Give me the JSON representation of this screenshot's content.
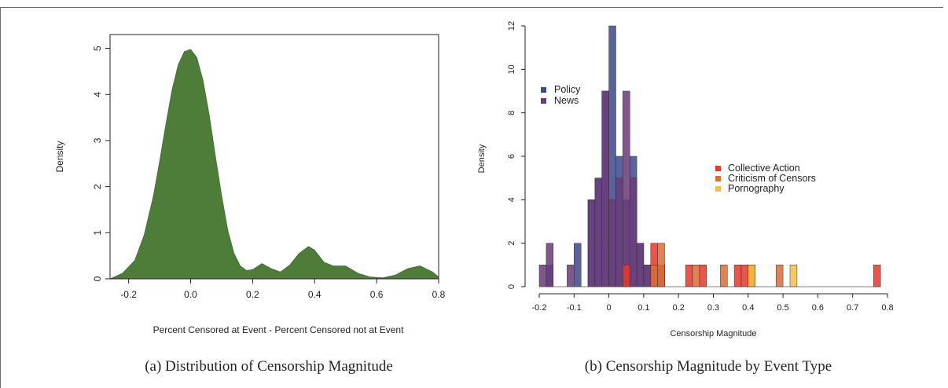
{
  "chart_data": [
    {
      "type": "area",
      "caption": "(a) Distribution of Censorship Magnitude",
      "xlabel": "Percent Censored at Event - Percent Censored not at Event",
      "ylabel": "Density",
      "xlim": [
        -0.26,
        0.8
      ],
      "ylim": [
        0,
        5.3
      ],
      "x_ticks": [
        "-0.2",
        "0.0",
        "0.2",
        "0.4",
        "0.6",
        "0.8"
      ],
      "y_ticks": [
        "0",
        "1",
        "2",
        "3",
        "4",
        "5"
      ],
      "fill_color": "#4e7d3a",
      "series": [
        {
          "x": [
            -0.26,
            -0.22,
            -0.18,
            -0.15,
            -0.12,
            -0.1,
            -0.08,
            -0.06,
            -0.04,
            -0.02,
            0.0,
            0.02,
            0.04,
            0.06,
            0.08,
            0.1,
            0.12,
            0.14,
            0.16,
            0.18,
            0.2,
            0.23,
            0.26,
            0.29,
            0.32,
            0.35,
            0.38,
            0.4,
            0.43,
            0.46,
            0.5,
            0.54,
            0.58,
            0.62,
            0.66,
            0.7,
            0.74,
            0.78,
            0.8
          ],
          "y": [
            0.0,
            0.12,
            0.4,
            0.95,
            1.8,
            2.55,
            3.35,
            4.1,
            4.65,
            4.93,
            4.98,
            4.8,
            4.3,
            3.55,
            2.65,
            1.8,
            1.05,
            0.55,
            0.28,
            0.18,
            0.2,
            0.33,
            0.22,
            0.15,
            0.3,
            0.55,
            0.7,
            0.62,
            0.36,
            0.28,
            0.28,
            0.12,
            0.04,
            0.02,
            0.08,
            0.22,
            0.28,
            0.15,
            0.04
          ]
        }
      ]
    },
    {
      "type": "bar",
      "caption": "(b) Censorship Magnitude by Event Type",
      "xlabel": "Censorship Magnitude",
      "ylabel": "Density",
      "xlim": [
        -0.2,
        0.8
      ],
      "ylim": [
        0,
        12
      ],
      "x_ticks": [
        "-0.2",
        "-0.1",
        "0",
        "0.1",
        "0.2",
        "0.3",
        "0.4",
        "0.5",
        "0.6",
        "0.7",
        "0.8"
      ],
      "y_ticks": [
        "0",
        "2",
        "4",
        "6",
        "8",
        "10",
        "12"
      ],
      "bin_width": 0.02,
      "legend": [
        {
          "label": "Policy",
          "color": "#3d4a8a"
        },
        {
          "label": "News",
          "color": "#6b3b7a"
        },
        {
          "label": "Collective Action",
          "color": "#e8392b"
        },
        {
          "label": "Criticism of Censors",
          "color": "#d86f37"
        },
        {
          "label": "Pornography",
          "color": "#f4c042"
        }
      ],
      "series": [
        {
          "name": "Policy",
          "color": "#3d4a8a",
          "bins": [
            [
              -0.18,
              1
            ],
            [
              -0.1,
              2
            ],
            [
              -0.06,
              4
            ],
            [
              -0.04,
              5
            ],
            [
              -0.02,
              9
            ],
            [
              0.0,
              12
            ],
            [
              0.02,
              6
            ],
            [
              0.04,
              4
            ],
            [
              0.06,
              6
            ],
            [
              0.08,
              2
            ],
            [
              0.1,
              1
            ],
            [
              0.12,
              0
            ]
          ]
        },
        {
          "name": "News",
          "color": "#6b3b7a",
          "bins": [
            [
              -0.2,
              1
            ],
            [
              -0.18,
              2
            ],
            [
              -0.12,
              1
            ],
            [
              -0.06,
              4
            ],
            [
              -0.04,
              5
            ],
            [
              -0.02,
              9
            ],
            [
              0.0,
              4
            ],
            [
              0.02,
              5
            ],
            [
              0.04,
              9
            ],
            [
              0.06,
              5
            ],
            [
              0.08,
              2
            ],
            [
              0.1,
              1
            ],
            [
              0.12,
              1
            ],
            [
              0.14,
              1
            ]
          ]
        },
        {
          "name": "Collective Action",
          "color": "#e8392b",
          "bins": [
            [
              0.04,
              1
            ],
            [
              0.12,
              2
            ],
            [
              0.14,
              1
            ],
            [
              0.22,
              1
            ],
            [
              0.26,
              1
            ],
            [
              0.36,
              1
            ],
            [
              0.38,
              1
            ],
            [
              0.4,
              1
            ],
            [
              0.76,
              1
            ]
          ]
        },
        {
          "name": "Criticism of Censors",
          "color": "#d86f37",
          "bins": [
            [
              0.12,
              1
            ],
            [
              0.14,
              2
            ],
            [
              0.24,
              1
            ],
            [
              0.32,
              1
            ],
            [
              0.4,
              1
            ],
            [
              0.48,
              1
            ]
          ]
        },
        {
          "name": "Pornography",
          "color": "#f4c042",
          "bins": [
            [
              0.4,
              1
            ],
            [
              0.52,
              1
            ]
          ]
        }
      ]
    }
  ]
}
